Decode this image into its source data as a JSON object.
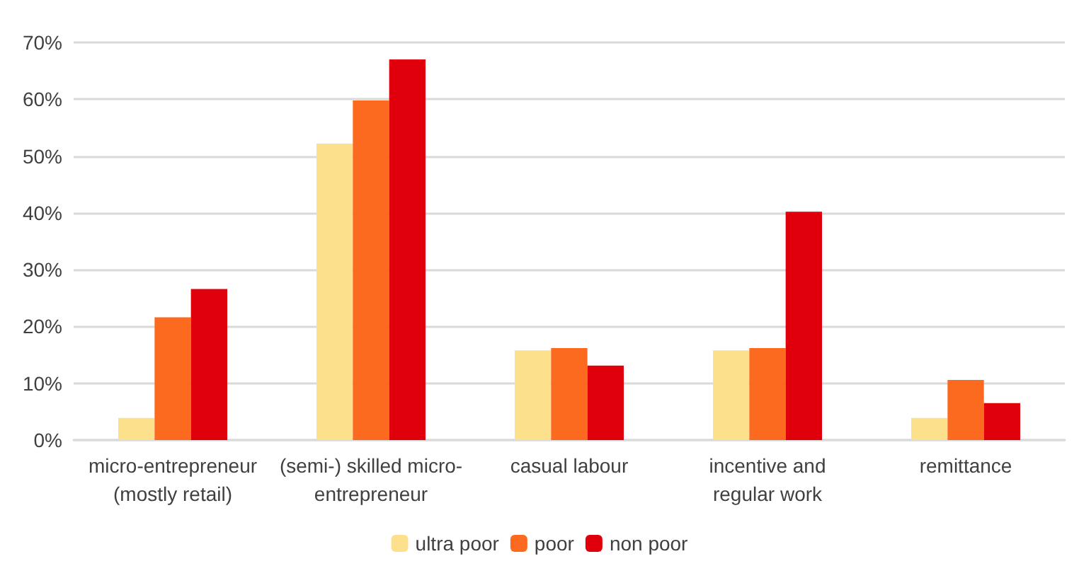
{
  "chart_data": {
    "type": "bar",
    "categories": [
      "micro-entrepreneur\n(mostly retail)",
      "(semi-) skilled micro-\nentrepreneur",
      "casual labour",
      "incentive and\nregular work",
      "remittance"
    ],
    "series": [
      {
        "name": "ultra poor",
        "color": "#fde08c",
        "values": [
          3.9,
          52.2,
          15.8,
          15.8,
          3.9
        ]
      },
      {
        "name": "poor",
        "color": "#fb6a1f",
        "values": [
          21.6,
          59.8,
          16.2,
          16.2,
          10.6
        ]
      },
      {
        "name": "non poor",
        "color": "#e0000b",
        "values": [
          26.6,
          67,
          13.1,
          40.2,
          6.5
        ]
      }
    ],
    "ylim": [
      0,
      70
    ],
    "yticks": [
      {
        "value": 0,
        "label": "0%"
      },
      {
        "value": 10,
        "label": "10%"
      },
      {
        "value": 20,
        "label": "20%"
      },
      {
        "value": 30,
        "label": "30%"
      },
      {
        "value": 40,
        "label": "40%"
      },
      {
        "value": 50,
        "label": "50%"
      },
      {
        "value": 60,
        "label": "60%"
      },
      {
        "value": 70,
        "label": "70%"
      }
    ],
    "grid": "y",
    "legend": "bottom"
  }
}
